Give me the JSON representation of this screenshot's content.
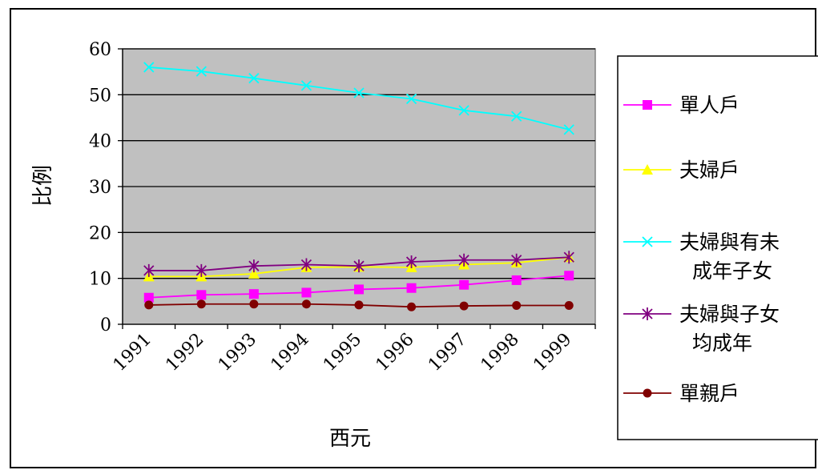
{
  "chart_data": {
    "type": "line",
    "categories": [
      "1991",
      "1992",
      "1993",
      "1994",
      "1995",
      "1996",
      "1997",
      "1998",
      "1999"
    ],
    "xlabel": "西元",
    "ylabel": "比例",
    "ylim": [
      0,
      60
    ],
    "yticks": [
      0,
      10,
      20,
      30,
      40,
      50,
      60
    ],
    "grid": "horizontal",
    "plot_background": "#c0c0c0",
    "legend_position": "right",
    "series": [
      {
        "name": "單人戶",
        "legend_lines": [
          "單人戶"
        ],
        "color": "#ff00ff",
        "marker": "square",
        "values": [
          5.8,
          6.4,
          6.6,
          6.9,
          7.6,
          7.9,
          8.6,
          9.6,
          10.6
        ]
      },
      {
        "name": "夫婦戶",
        "legend_lines": [
          "夫婦戶"
        ],
        "color": "#ffff00",
        "marker": "triangle",
        "values": [
          10.4,
          10.4,
          11.0,
          12.4,
          12.5,
          12.4,
          13.0,
          13.4,
          14.6
        ]
      },
      {
        "name": "夫婦與有未成年子女",
        "legend_lines": [
          "夫婦與有未",
          "成年子女"
        ],
        "color": "#00ffff",
        "marker": "x",
        "values": [
          56.0,
          55.1,
          53.6,
          52.0,
          50.4,
          49.1,
          46.6,
          45.3,
          42.4
        ]
      },
      {
        "name": "夫婦與子女均成年",
        "legend_lines": [
          "夫婦與子女",
          "均成年"
        ],
        "color": "#800080",
        "marker": "star",
        "values": [
          11.7,
          11.7,
          12.7,
          13.0,
          12.7,
          13.6,
          14.0,
          14.0,
          14.6
        ]
      },
      {
        "name": "單親戶",
        "legend_lines": [
          "單親戶"
        ],
        "color": "#800000",
        "marker": "circle",
        "values": [
          4.2,
          4.4,
          4.4,
          4.4,
          4.2,
          3.8,
          4.0,
          4.1,
          4.1
        ]
      }
    ]
  }
}
